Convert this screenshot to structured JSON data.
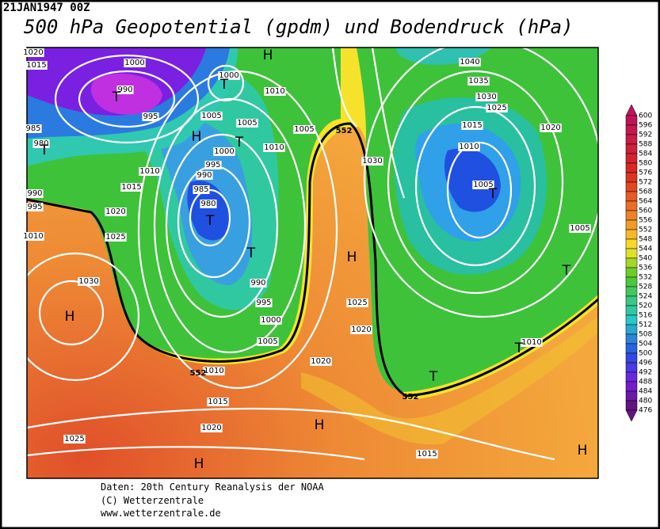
{
  "header": {
    "date": "21JAN1947 00Z",
    "title": "500 hPa Geopotential (gpdm) und Bodendruck (hPa)"
  },
  "footer": [
    "Daten: 20th Century Reanalysis der NOAA",
    "(C) Wetterzentrale",
    "www.wetterzentrale.de"
  ],
  "colorbar": {
    "labels": [
      600,
      596,
      592,
      588,
      584,
      580,
      576,
      572,
      568,
      564,
      560,
      556,
      552,
      548,
      544,
      540,
      536,
      532,
      528,
      524,
      520,
      516,
      512,
      508,
      504,
      500,
      496,
      492,
      488,
      484,
      480,
      476
    ]
  },
  "map": {
    "isobar_labels": [
      "1020",
      "1015",
      "1000",
      "990",
      "995",
      "1005",
      "1000",
      "1010",
      "1005",
      "1005",
      "1010",
      "1000",
      "995",
      "990",
      "985",
      "980",
      "1010",
      "1015",
      "1020",
      "1025",
      "1030",
      "985",
      "980",
      "990",
      "995",
      "1010",
      "990",
      "995",
      "1000",
      "1005",
      "1010",
      "1015",
      "1020",
      "1025",
      "1020",
      "1025",
      "1020",
      "1030",
      "1040",
      "1035",
      "1030",
      "1025",
      "1015",
      "1010",
      "1005",
      "1020",
      "1005",
      "1010",
      "1015"
    ],
    "pressure_centers": [
      "T",
      "T",
      "H",
      "H",
      "T",
      "T",
      "T",
      "T",
      "H",
      "H",
      "T",
      "T",
      "T",
      "T",
      "H",
      "H",
      "H"
    ],
    "contour_labels": [
      "552",
      "552",
      "552"
    ]
  }
}
